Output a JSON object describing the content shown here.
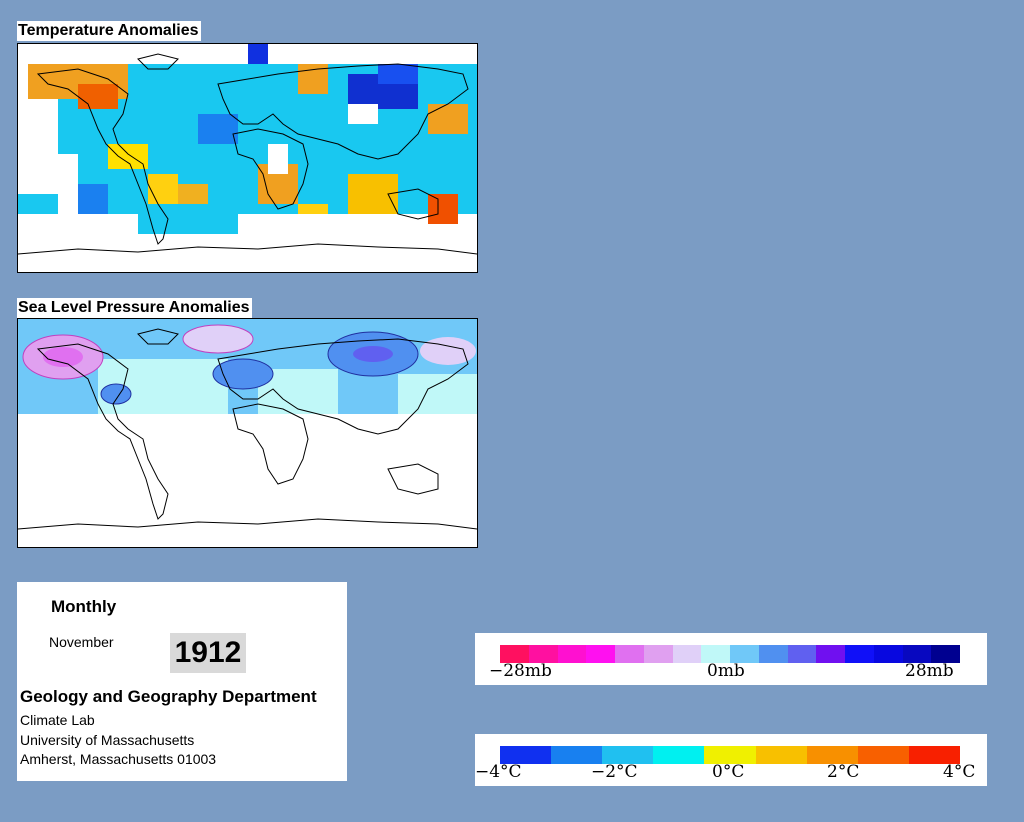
{
  "maps": {
    "temperature": {
      "title": "Temperature Anomalies"
    },
    "pressure": {
      "title": "Sea Level Pressure Anomalies"
    }
  },
  "info": {
    "frequency": "Monthly",
    "month": "November",
    "year": "1912",
    "department": "Geology and Geography Department",
    "lab": "Climate Lab",
    "university": "University of Massachusetts",
    "address": "Amherst, Massachusetts 01003"
  },
  "pressure_legend": {
    "labels": [
      "−28mb",
      "0mb",
      "28mb"
    ],
    "colors": [
      "#ff1060",
      "#ff10a0",
      "#ff10d0",
      "#ff10f0",
      "#e070f0",
      "#e0a0f0",
      "#e0d0f8",
      "#c0f8f8",
      "#70c8f8",
      "#5090f0",
      "#6060f0",
      "#7010f0",
      "#1010f8",
      "#0808e0",
      "#0808c0",
      "#000090"
    ]
  },
  "temperature_legend": {
    "labels": [
      "−4°C",
      "−2°C",
      "0°C",
      "2°C",
      "4°C"
    ],
    "colors": [
      "#1030f0",
      "#1880f0",
      "#20c0f0",
      "#00f0f0",
      "#f0f000",
      "#f8c000",
      "#f89000",
      "#f86000",
      "#f82000"
    ]
  },
  "palette": {
    "background": "#7b9cc4",
    "cold": "#1e90ff",
    "warm": "#ffa500",
    "land_outline": "#000000"
  }
}
